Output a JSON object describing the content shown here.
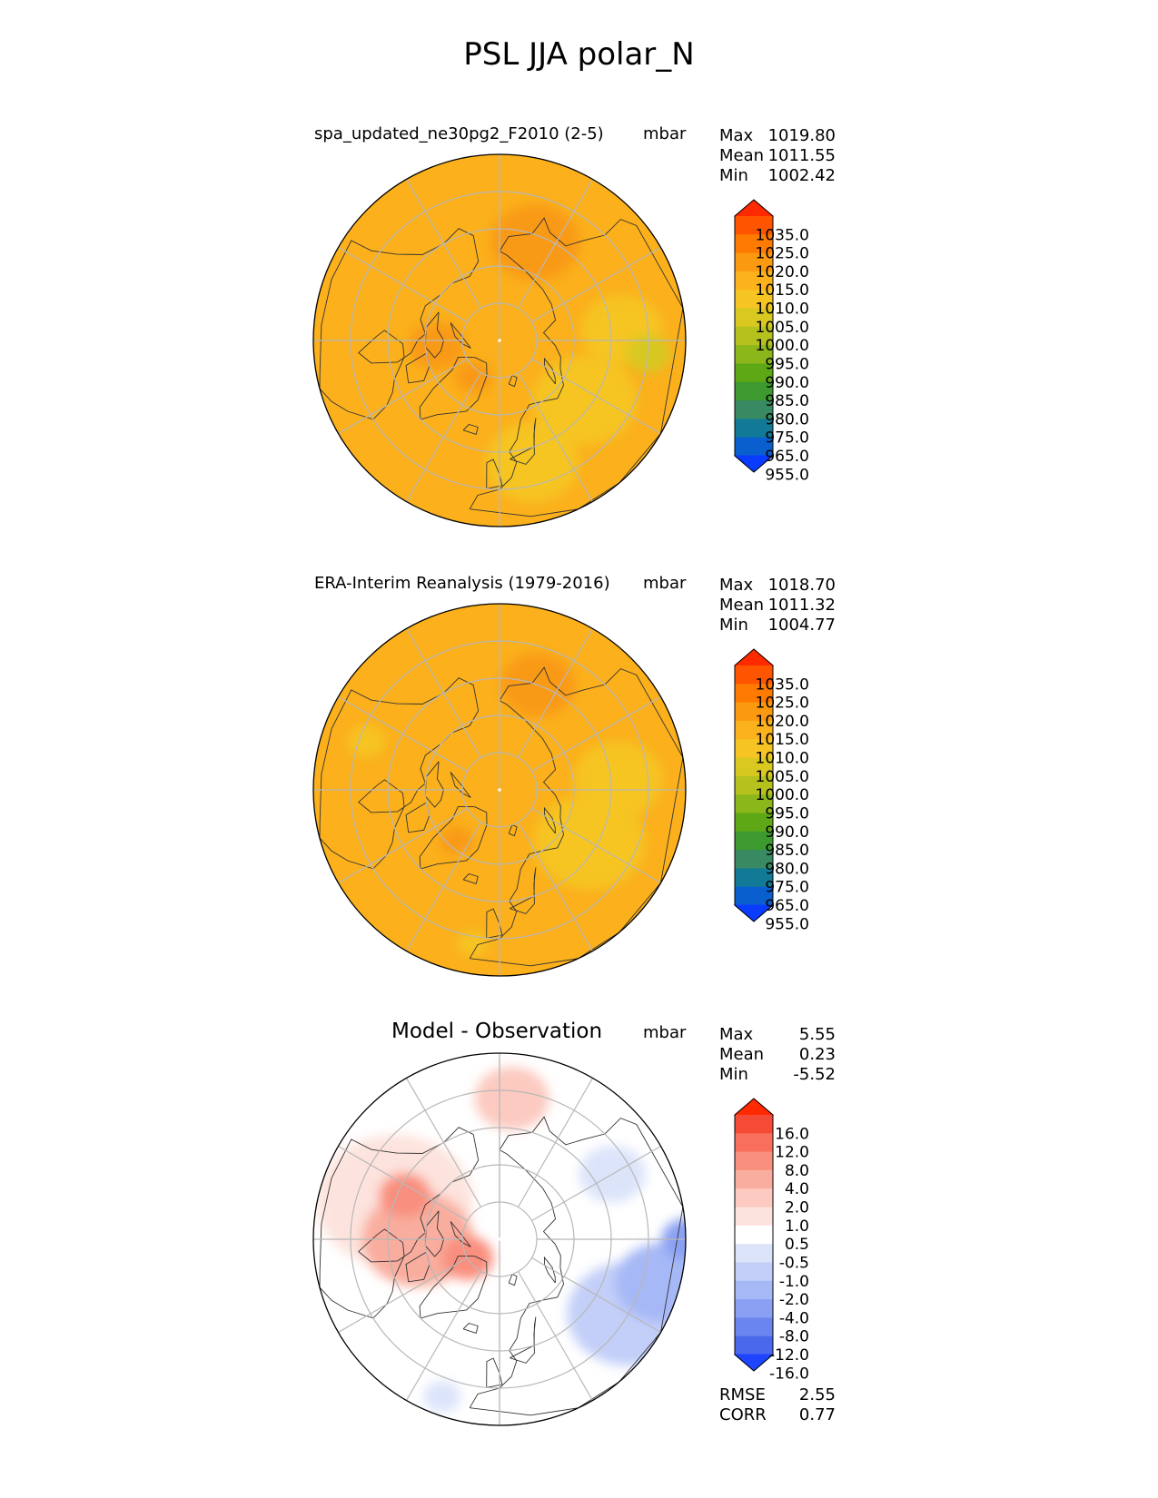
{
  "title": "PSL JJA polar_N",
  "panels": [
    {
      "title": "spa_updated_ne30pg2_F2010 (2-5)",
      "units": "mbar",
      "stats": [
        {
          "label": "Max",
          "value": "1019.80"
        },
        {
          "label": "Mean",
          "value": "1011.55"
        },
        {
          "label": "Min",
          "value": "1002.42"
        }
      ],
      "colorbar": {
        "ticks": [
          "1035.0",
          "1025.0",
          "1020.0",
          "1015.0",
          "1010.0",
          "1005.0",
          "1000.0",
          "995.0",
          "990.0",
          "985.0",
          "980.0",
          "975.0",
          "965.0",
          "955.0"
        ],
        "colors": [
          "#ff2a00",
          "#ff5500",
          "#ff7a00",
          "#fb9a10",
          "#fbb21c",
          "#f6c523",
          "#d8c820",
          "#b5c21d",
          "#8cb71a",
          "#5ea816",
          "#3c9a2e",
          "#388a62",
          "#127a96",
          "#0a5fcf",
          "#0a3cff"
        ]
      },
      "field": {
        "base": "#fbb01c",
        "features": [
          {
            "color": "#f99a15",
            "kind": "blob",
            "lon": 160,
            "lat": 62,
            "r": 0.24
          },
          {
            "color": "#f6c523",
            "kind": "blob",
            "lon": 55,
            "lat": 62,
            "r": 0.28
          },
          {
            "color": "#f6c523",
            "kind": "blob",
            "lon": 15,
            "lat": 56,
            "r": 0.25
          },
          {
            "color": "#f6c523",
            "kind": "blob",
            "lon": 95,
            "lat": 57,
            "r": 0.22
          },
          {
            "color": "#d8c820",
            "kind": "blob",
            "lon": 85,
            "lat": 50,
            "r": 0.12
          },
          {
            "color": "#f99a15",
            "kind": "blob",
            "lon": -85,
            "lat": 73,
            "r": 0.15
          },
          {
            "color": "#f99a15",
            "kind": "blob",
            "lon": -35,
            "lat": 78,
            "r": 0.1
          }
        ]
      }
    },
    {
      "title": "ERA-Interim Reanalysis (1979-2016)",
      "units": "mbar",
      "stats": [
        {
          "label": "Max",
          "value": "1018.70"
        },
        {
          "label": "Mean",
          "value": "1011.32"
        },
        {
          "label": "Min",
          "value": "1004.77"
        }
      ],
      "colorbar": {
        "ticks": [
          "1035.0",
          "1025.0",
          "1020.0",
          "1015.0",
          "1010.0",
          "1005.0",
          "1000.0",
          "995.0",
          "990.0",
          "985.0",
          "980.0",
          "975.0",
          "965.0",
          "955.0"
        ],
        "colors": [
          "#ff2a00",
          "#ff5500",
          "#ff7a00",
          "#fb9a10",
          "#fbb21c",
          "#f6c523",
          "#d8c820",
          "#b5c21d",
          "#8cb71a",
          "#5ea816",
          "#3c9a2e",
          "#388a62",
          "#127a96",
          "#0a5fcf",
          "#0a3cff"
        ]
      },
      "field": {
        "base": "#fbb01c",
        "features": [
          {
            "color": "#f99a15",
            "kind": "blob",
            "lon": 160,
            "lat": 60,
            "r": 0.2
          },
          {
            "color": "#f6c523",
            "kind": "blob",
            "lon": 60,
            "lat": 62,
            "r": 0.3
          },
          {
            "color": "#f6c523",
            "kind": "blob",
            "lon": 95,
            "lat": 58,
            "r": 0.24
          },
          {
            "color": "#f99a15",
            "kind": "blob",
            "lon": -40,
            "lat": 72,
            "r": 0.09
          },
          {
            "color": "#f6c523",
            "kind": "blob",
            "lon": -110,
            "lat": 52,
            "r": 0.1
          },
          {
            "color": "#f6c523",
            "kind": "blob",
            "lon": -10,
            "lat": 48,
            "r": 0.08
          }
        ]
      }
    },
    {
      "title": "Model - Observation",
      "units": "mbar",
      "stats": [
        {
          "label": "Max",
          "value": "5.55"
        },
        {
          "label": "Mean",
          "value": "0.23"
        },
        {
          "label": "Min",
          "value": "-5.52"
        }
      ],
      "colorbar": {
        "ticks": [
          "16.0",
          "12.0",
          "8.0",
          "4.0",
          "2.0",
          "1.0",
          "0.5",
          "-0.5",
          "-1.0",
          "-2.0",
          "-4.0",
          "-8.0",
          "-12.0",
          "-16.0"
        ],
        "colors": [
          "#ff2a00",
          "#f54a36",
          "#f8705c",
          "#f98f7e",
          "#f9ad9e",
          "#fccac0",
          "#fde3dd",
          "#ffffff",
          "#dce4fa",
          "#c3cff8",
          "#a6b8f6",
          "#8aa0f2",
          "#6a86ee",
          "#4a68ec",
          "#1f44ff"
        ]
      },
      "field": {
        "base": "#ffffff",
        "features": [
          {
            "color": "#fde3dd",
            "kind": "blob",
            "lon": -110,
            "lat": 60,
            "r": 0.42
          },
          {
            "color": "#f9ad9e",
            "kind": "blob",
            "lon": -90,
            "lat": 68,
            "r": 0.3
          },
          {
            "color": "#f98f7e",
            "kind": "blob",
            "lon": -60,
            "lat": 80,
            "r": 0.14
          },
          {
            "color": "#f98f7e",
            "kind": "blob",
            "lon": -115,
            "lat": 62,
            "r": 0.14
          },
          {
            "color": "#fccac0",
            "kind": "blob",
            "lon": 175,
            "lat": 52,
            "r": 0.2
          },
          {
            "color": "#c3cff8",
            "kind": "blob",
            "lon": 60,
            "lat": 50,
            "r": 0.33
          },
          {
            "color": "#a6b8f6",
            "kind": "blob",
            "lon": 75,
            "lat": 45,
            "r": 0.25
          },
          {
            "color": "#8aa0f2",
            "kind": "blob",
            "lon": 90,
            "lat": 40,
            "r": 0.13
          },
          {
            "color": "#dce4fa",
            "kind": "blob",
            "lon": 120,
            "lat": 55,
            "r": 0.18
          },
          {
            "color": "#dce4fa",
            "kind": "blob",
            "lon": -20,
            "lat": 45,
            "r": 0.1
          }
        ]
      }
    }
  ],
  "metrics": [
    {
      "label": "RMSE",
      "value": "2.55"
    },
    {
      "label": "CORR",
      "value": "0.77"
    }
  ]
}
